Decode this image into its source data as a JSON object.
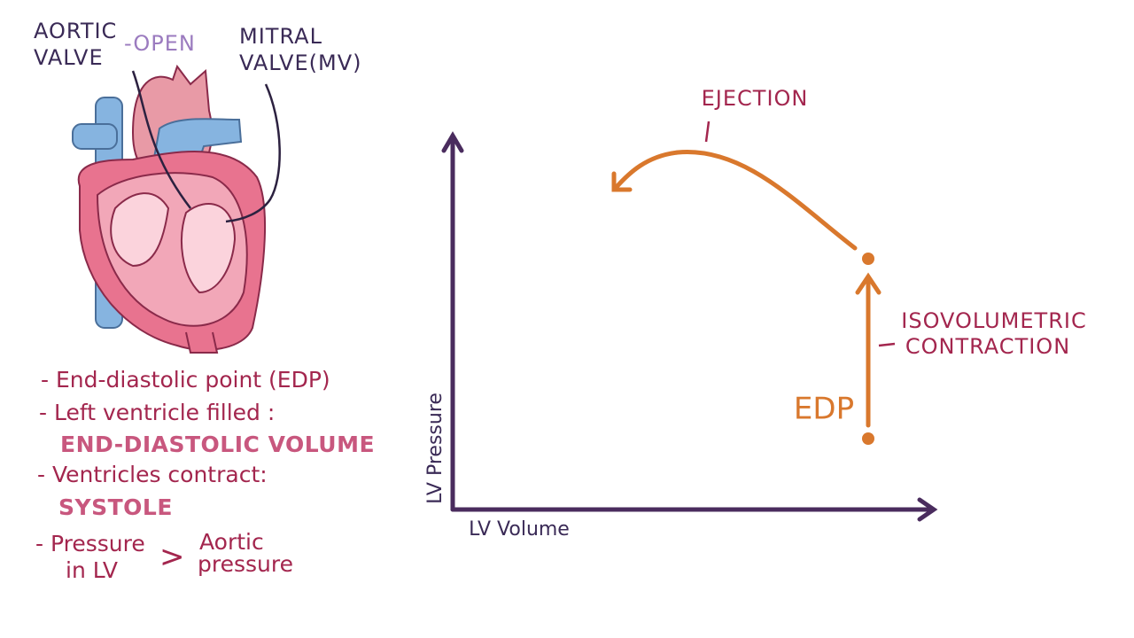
{
  "heart": {
    "aortic_valve": [
      "AORTIC",
      "VALVE"
    ],
    "open": "-OPEN",
    "mitral_valve": [
      "MITRAL",
      "VALVE(MV)"
    ]
  },
  "notes": {
    "edp": "- End-diastolic point (EDP)",
    "filled": "- Left ventricle filled :",
    "edv": "END-DIASTOLIC VOLUME",
    "contract": "- Ventricles contract:",
    "systole": "SYSTOLE",
    "pressure": [
      "- Pressure",
      "in LV"
    ],
    "greater": ">",
    "aortic": [
      "Aortic",
      "pressure"
    ]
  },
  "graph": {
    "y_axis": "LV Pressure",
    "x_axis": "LV Volume",
    "ejection": "EJECTION",
    "isovolumetric": [
      "ISOVOLUMETRIC",
      "CONTRACTION"
    ],
    "edp": "EDP"
  }
}
